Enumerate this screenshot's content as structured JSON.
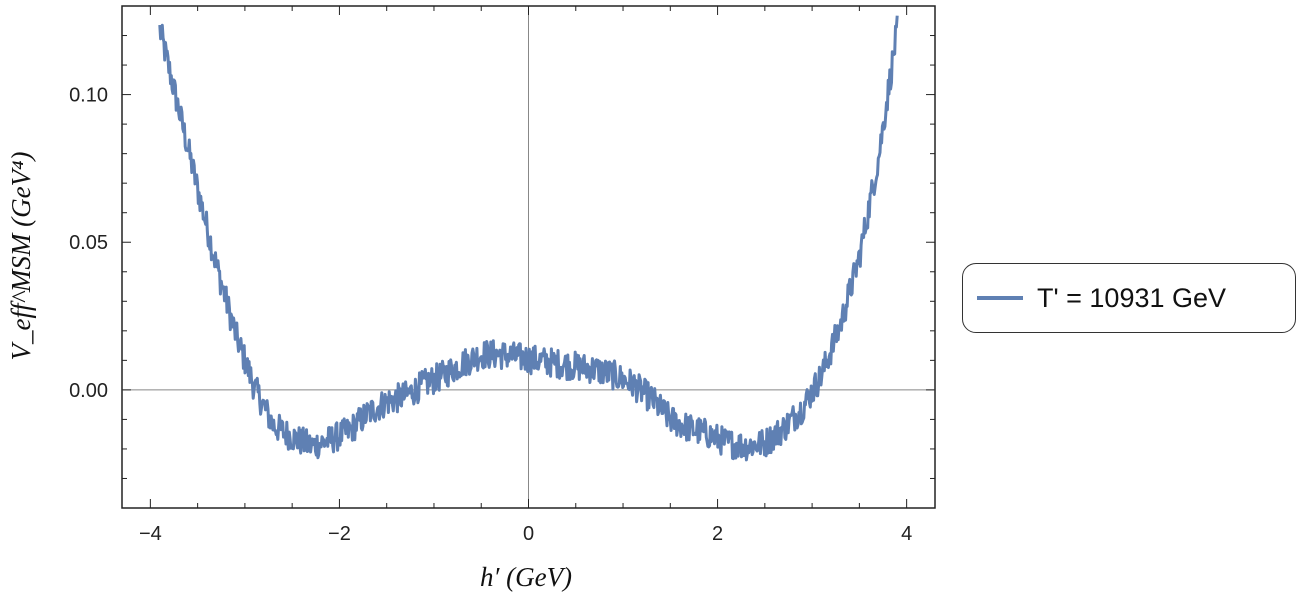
{
  "chart_data": {
    "type": "line",
    "title": "",
    "xlabel": "h′ (GeV)",
    "ylabel": "V_eff^MSM (GeV⁴)",
    "xlim": [
      -4.3,
      4.3
    ],
    "ylim": [
      -0.04,
      0.13
    ],
    "x_ticks": [
      -4,
      -2,
      0,
      2,
      4
    ],
    "x_tick_labels": [
      "−4",
      "−2",
      "0",
      "2",
      "4"
    ],
    "y_ticks": [
      0.0,
      0.05,
      0.1
    ],
    "y_tick_labels": [
      "0.00",
      "0.05",
      "0.10"
    ],
    "grid": false,
    "origin_axes": true,
    "legend_position": "right",
    "series": [
      {
        "name": "T' = 10931 GeV",
        "color": "#5f80b3",
        "noise_amplitude": 0.005,
        "x": [
          -3.9,
          -3.7,
          -3.5,
          -3.3,
          -3.1,
          -2.9,
          -2.7,
          -2.5,
          -2.3,
          -2.1,
          -1.9,
          -1.7,
          -1.5,
          -1.3,
          -1.1,
          -0.9,
          -0.7,
          -0.5,
          -0.3,
          -0.1,
          0.1,
          0.3,
          0.5,
          0.7,
          0.9,
          1.1,
          1.3,
          1.5,
          1.7,
          1.9,
          2.1,
          2.3,
          2.5,
          2.7,
          2.9,
          3.1,
          3.3,
          3.5,
          3.7,
          3.9
        ],
        "y": [
          0.122,
          0.095,
          0.068,
          0.042,
          0.019,
          0.001,
          -0.012,
          -0.016,
          -0.019,
          -0.017,
          -0.014,
          -0.008,
          -0.004,
          -0.002,
          0.002,
          0.005,
          0.009,
          0.012,
          0.012,
          0.011,
          0.01,
          0.009,
          0.008,
          0.007,
          0.005,
          0.002,
          -0.003,
          -0.01,
          -0.013,
          -0.015,
          -0.018,
          -0.019,
          -0.018,
          -0.013,
          -0.006,
          0.005,
          0.022,
          0.045,
          0.078,
          0.122
        ]
      }
    ]
  }
}
